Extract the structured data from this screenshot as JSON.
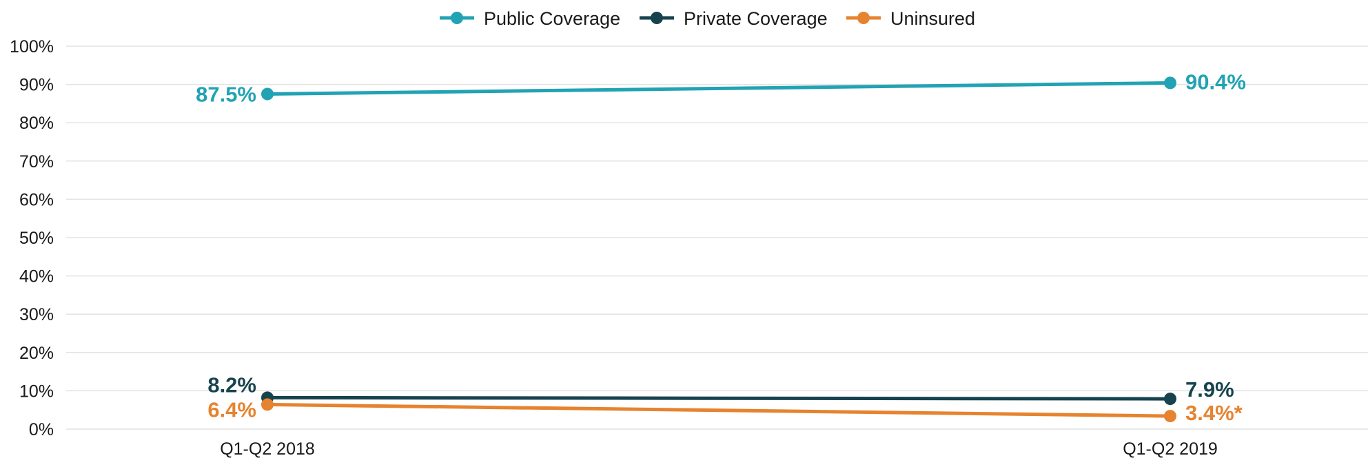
{
  "chart_data": {
    "type": "line",
    "categories": [
      "Q1-Q2 2018",
      "Q1-Q2 2019"
    ],
    "series": [
      {
        "name": "Public Coverage",
        "values": [
          87.5,
          90.4
        ],
        "labels": [
          "87.5%",
          "90.4%"
        ],
        "color": "#21a3b4"
      },
      {
        "name": "Private Coverage",
        "values": [
          8.2,
          7.9
        ],
        "labels": [
          "8.2%",
          "7.9%"
        ],
        "color": "#17434f"
      },
      {
        "name": "Uninsured",
        "values": [
          6.4,
          3.4
        ],
        "labels": [
          "6.4%",
          "3.4%*"
        ],
        "color": "#e6832f"
      }
    ],
    "yticks": [
      "0%",
      "10%",
      "20%",
      "30%",
      "40%",
      "50%",
      "60%",
      "70%",
      "80%",
      "90%",
      "100%"
    ],
    "ylim": [
      0,
      100
    ],
    "grid": true,
    "legend_position": "top-center",
    "title": "",
    "xlabel": "",
    "ylabel": ""
  }
}
